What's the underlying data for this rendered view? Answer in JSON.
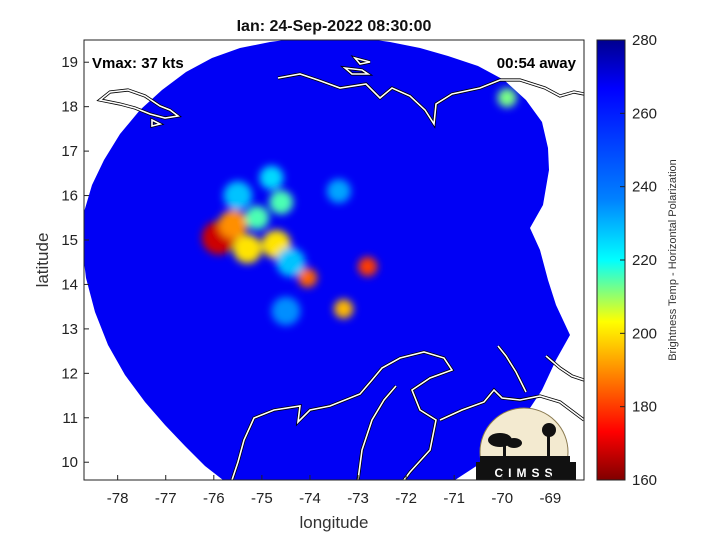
{
  "chart_data": {
    "type": "heatmap",
    "title": "Ian: 24-Sep-2022 08:30:00",
    "xlabel": "longitude",
    "ylabel": "latitude",
    "xlim": [
      -78.7,
      -68.3
    ],
    "ylim": [
      9.6,
      19.5
    ],
    "xticks": [
      -78,
      -77,
      -76,
      -75,
      -74,
      -73,
      -72,
      -71,
      -70,
      -69
    ],
    "yticks": [
      10,
      11,
      12,
      13,
      14,
      15,
      16,
      17,
      18,
      19
    ],
    "annotations": {
      "left": "Vmax: 37 kts",
      "right": "00:54 away"
    },
    "colorbar": {
      "label": "Brightness Temp - Horizontal Polarization",
      "range": [
        160,
        280
      ],
      "ticks": [
        160,
        180,
        200,
        220,
        240,
        260,
        280
      ],
      "colormap": "jet"
    },
    "background_value": 268,
    "features": [
      {
        "lon": -75.9,
        "lat": 15.05,
        "value": 168,
        "radius_deg": 0.35
      },
      {
        "lon": -75.6,
        "lat": 15.35,
        "value": 190,
        "radius_deg": 0.3
      },
      {
        "lon": -75.3,
        "lat": 14.8,
        "value": 200,
        "radius_deg": 0.3
      },
      {
        "lon": -74.7,
        "lat": 14.9,
        "value": 200,
        "radius_deg": 0.3
      },
      {
        "lon": -75.1,
        "lat": 15.5,
        "value": 215,
        "radius_deg": 0.25
      },
      {
        "lon": -74.6,
        "lat": 15.85,
        "value": 215,
        "radius_deg": 0.25
      },
      {
        "lon": -74.05,
        "lat": 14.15,
        "value": 185,
        "radius_deg": 0.2
      },
      {
        "lon": -72.8,
        "lat": 14.4,
        "value": 180,
        "radius_deg": 0.2
      },
      {
        "lon": -73.3,
        "lat": 13.45,
        "value": 195,
        "radius_deg": 0.2
      },
      {
        "lon": -74.4,
        "lat": 14.5,
        "value": 228,
        "radius_deg": 0.3
      },
      {
        "lon": -74.8,
        "lat": 16.4,
        "value": 225,
        "radius_deg": 0.25
      },
      {
        "lon": -73.4,
        "lat": 16.1,
        "value": 232,
        "radius_deg": 0.25
      },
      {
        "lon": -74.5,
        "lat": 13.4,
        "value": 235,
        "radius_deg": 0.3
      },
      {
        "lon": -75.5,
        "lat": 16.0,
        "value": 228,
        "radius_deg": 0.3
      },
      {
        "lon": -69.9,
        "lat": 18.2,
        "value": 212,
        "radius_deg": 0.2
      }
    ],
    "logo": {
      "text": "CIMSS"
    }
  }
}
